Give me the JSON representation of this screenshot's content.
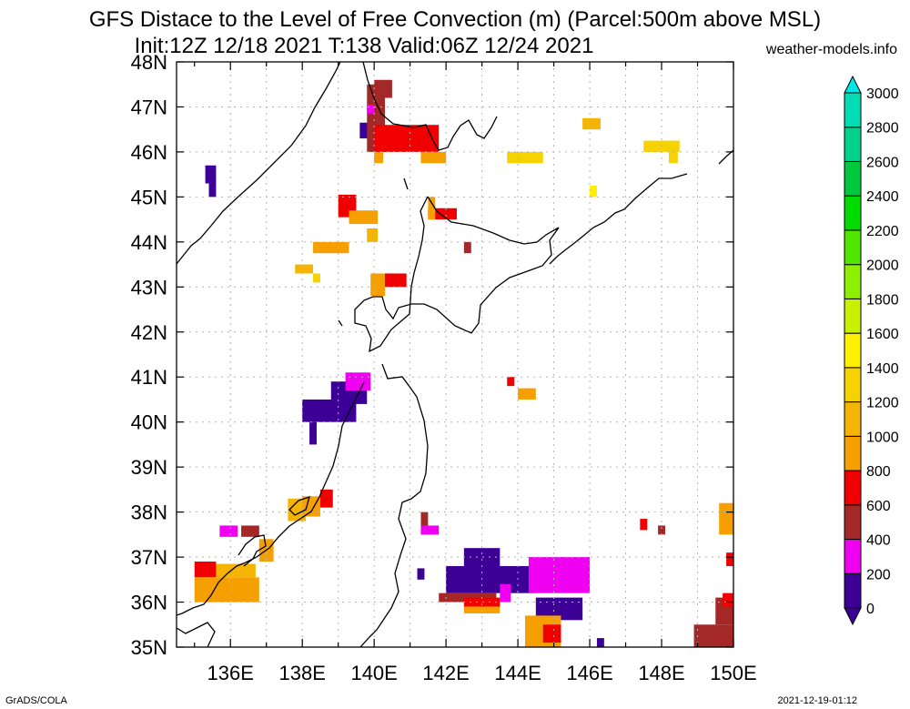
{
  "title_line1": "GFS Distace to the Level of Free Convection (m) (Parcel:500m above MSL)",
  "title_line2": "Init:12Z 12/18 2021 T:138 Valid:06Z 12/24 2021",
  "site": "weather-models.info",
  "footer_left": "GrADS/COLA",
  "footer_right": "2021-12-19-01:12",
  "lon_labels": [
    "136E",
    "138E",
    "140E",
    "142E",
    "144E",
    "146E",
    "148E",
    "150E"
  ],
  "lat_labels": [
    "35N",
    "36N",
    "37N",
    "38N",
    "39N",
    "40N",
    "41N",
    "42N",
    "43N",
    "44N",
    "45N",
    "46N",
    "47N",
    "48N"
  ],
  "colorbar": {
    "labels": [
      "0",
      "200",
      "400",
      "600",
      "800",
      "1000",
      "1200",
      "1400",
      "1600",
      "1800",
      "2000",
      "2200",
      "2400",
      "2600",
      "2800",
      "3000"
    ],
    "colors": [
      "#3c0096",
      "#f000f0",
      "#a52828",
      "#f00000",
      "#f5a000",
      "#f5b400",
      "#f5d200",
      "#fff000",
      "#c8f000",
      "#8cf000",
      "#50e600",
      "#00dc00",
      "#00c83c",
      "#00d28c",
      "#00dcb4",
      "#00e6e6"
    ]
  },
  "patches": [
    {
      "lon": 135.0,
      "lat": 36.55,
      "w": 0.6,
      "h": 0.35,
      "color": "#f00000"
    },
    {
      "lon": 135.0,
      "lat": 36.0,
      "w": 1.8,
      "h": 0.55,
      "color": "#f5a000"
    },
    {
      "lon": 135.6,
      "lat": 36.55,
      "w": 1.1,
      "h": 0.3,
      "color": "#f5b400"
    },
    {
      "lon": 135.7,
      "lat": 37.45,
      "w": 0.5,
      "h": 0.25,
      "color": "#f000f0"
    },
    {
      "lon": 136.3,
      "lat": 37.45,
      "w": 0.5,
      "h": 0.25,
      "color": "#a52828"
    },
    {
      "lon": 136.8,
      "lat": 36.9,
      "w": 0.4,
      "h": 0.5,
      "color": "#f5a000"
    },
    {
      "lon": 137.6,
      "lat": 37.8,
      "w": 0.5,
      "h": 0.5,
      "color": "#f5b400"
    },
    {
      "lon": 138.0,
      "lat": 37.9,
      "w": 0.5,
      "h": 0.45,
      "color": "#f5a000"
    },
    {
      "lon": 138.5,
      "lat": 38.1,
      "w": 0.35,
      "h": 0.4,
      "color": "#f00000"
    },
    {
      "lon": 137.8,
      "lat": 43.3,
      "w": 0.5,
      "h": 0.2,
      "color": "#f5b400"
    },
    {
      "lon": 138.3,
      "lat": 43.1,
      "w": 0.2,
      "h": 0.2,
      "color": "#f5d200"
    },
    {
      "lon": 138.3,
      "lat": 43.75,
      "w": 1.0,
      "h": 0.25,
      "color": "#f5a000"
    },
    {
      "lon": 139.0,
      "lat": 44.55,
      "w": 0.5,
      "h": 0.5,
      "color": "#f00000"
    },
    {
      "lon": 139.3,
      "lat": 44.4,
      "w": 0.8,
      "h": 0.3,
      "color": "#f5a000"
    },
    {
      "lon": 139.8,
      "lat": 44.0,
      "w": 0.3,
      "h": 0.3,
      "color": "#f5b400"
    },
    {
      "lon": 139.9,
      "lat": 42.8,
      "w": 0.4,
      "h": 0.5,
      "color": "#f5a000"
    },
    {
      "lon": 140.3,
      "lat": 43.0,
      "w": 0.6,
      "h": 0.3,
      "color": "#f00000"
    },
    {
      "lon": 139.6,
      "lat": 46.3,
      "w": 0.4,
      "h": 0.35,
      "color": "#3c0096"
    },
    {
      "lon": 139.8,
      "lat": 46.0,
      "w": 0.5,
      "h": 1.5,
      "color": "#a52828"
    },
    {
      "lon": 140.0,
      "lat": 47.2,
      "w": 0.5,
      "h": 0.4,
      "color": "#a52828"
    },
    {
      "lon": 140.0,
      "lat": 46.0,
      "w": 1.8,
      "h": 0.6,
      "color": "#f00000"
    },
    {
      "lon": 139.8,
      "lat": 46.85,
      "w": 0.2,
      "h": 0.2,
      "color": "#f000f0"
    },
    {
      "lon": 140.0,
      "lat": 45.75,
      "w": 0.25,
      "h": 0.25,
      "color": "#f5a000"
    },
    {
      "lon": 141.3,
      "lat": 45.75,
      "w": 0.7,
      "h": 0.25,
      "color": "#f5a000"
    },
    {
      "lon": 141.5,
      "lat": 44.5,
      "w": 0.8,
      "h": 0.25,
      "color": "#f00000"
    },
    {
      "lon": 141.5,
      "lat": 44.5,
      "w": 0.2,
      "h": 0.5,
      "color": "#f5a000"
    },
    {
      "lon": 142.5,
      "lat": 43.75,
      "w": 0.2,
      "h": 0.25,
      "color": "#a52828"
    },
    {
      "lon": 143.7,
      "lat": 45.75,
      "w": 1.0,
      "h": 0.25,
      "color": "#f5d200"
    },
    {
      "lon": 145.8,
      "lat": 46.5,
      "w": 0.5,
      "h": 0.25,
      "color": "#f5b400"
    },
    {
      "lon": 147.5,
      "lat": 46.0,
      "w": 1.0,
      "h": 0.25,
      "color": "#f5d200"
    },
    {
      "lon": 148.2,
      "lat": 45.75,
      "w": 0.25,
      "h": 0.25,
      "color": "#f5d200"
    },
    {
      "lon": 146.0,
      "lat": 45.0,
      "w": 0.2,
      "h": 0.25,
      "color": "#fff000"
    },
    {
      "lon": 138.0,
      "lat": 40.0,
      "w": 1.5,
      "h": 0.5,
      "color": "#3c0096"
    },
    {
      "lon": 138.8,
      "lat": 40.4,
      "w": 1.0,
      "h": 0.5,
      "color": "#3c0096"
    },
    {
      "lon": 139.2,
      "lat": 40.7,
      "w": 0.7,
      "h": 0.4,
      "color": "#f000f0"
    },
    {
      "lon": 138.2,
      "lat": 39.5,
      "w": 0.2,
      "h": 0.5,
      "color": "#3c0096"
    },
    {
      "lon": 143.7,
      "lat": 40.8,
      "w": 0.2,
      "h": 0.2,
      "color": "#f00000"
    },
    {
      "lon": 144.0,
      "lat": 40.5,
      "w": 0.5,
      "h": 0.25,
      "color": "#f5a000"
    },
    {
      "lon": 141.3,
      "lat": 37.5,
      "w": 0.2,
      "h": 0.5,
      "color": "#a52828"
    },
    {
      "lon": 141.3,
      "lat": 37.5,
      "w": 0.5,
      "h": 0.2,
      "color": "#f000f0"
    },
    {
      "lon": 141.2,
      "lat": 36.5,
      "w": 0.2,
      "h": 0.25,
      "color": "#3c0096"
    },
    {
      "lon": 142.0,
      "lat": 36.2,
      "w": 2.5,
      "h": 0.6,
      "color": "#3c0096"
    },
    {
      "lon": 142.5,
      "lat": 36.7,
      "w": 1.0,
      "h": 0.5,
      "color": "#3c0096"
    },
    {
      "lon": 141.8,
      "lat": 36.0,
      "w": 1.6,
      "h": 0.2,
      "color": "#a52828"
    },
    {
      "lon": 142.5,
      "lat": 35.9,
      "w": 1.0,
      "h": 0.2,
      "color": "#f00000"
    },
    {
      "lon": 142.5,
      "lat": 35.75,
      "w": 1.0,
      "h": 0.15,
      "color": "#f5a000"
    },
    {
      "lon": 143.5,
      "lat": 36.0,
      "w": 0.3,
      "h": 0.4,
      "color": "#f000f0"
    },
    {
      "lon": 144.3,
      "lat": 36.2,
      "w": 1.7,
      "h": 0.8,
      "color": "#f000f0"
    },
    {
      "lon": 144.5,
      "lat": 35.6,
      "w": 1.3,
      "h": 0.5,
      "color": "#3c0096"
    },
    {
      "lon": 144.2,
      "lat": 35.0,
      "w": 1.0,
      "h": 0.7,
      "color": "#f5a000"
    },
    {
      "lon": 144.7,
      "lat": 35.1,
      "w": 0.5,
      "h": 0.4,
      "color": "#f00000"
    },
    {
      "lon": 146.2,
      "lat": 35.0,
      "w": 0.2,
      "h": 0.2,
      "color": "#3c0096"
    },
    {
      "lon": 147.4,
      "lat": 37.6,
      "w": 0.2,
      "h": 0.25,
      "color": "#f00000"
    },
    {
      "lon": 147.9,
      "lat": 37.5,
      "w": 0.2,
      "h": 0.2,
      "color": "#a52828"
    },
    {
      "lon": 149.6,
      "lat": 37.5,
      "w": 0.4,
      "h": 0.7,
      "color": "#f5a000"
    },
    {
      "lon": 149.8,
      "lat": 36.8,
      "w": 0.2,
      "h": 0.3,
      "color": "#f00000"
    },
    {
      "lon": 148.9,
      "lat": 35.0,
      "w": 1.1,
      "h": 0.5,
      "color": "#a52828"
    },
    {
      "lon": 149.5,
      "lat": 35.5,
      "w": 0.5,
      "h": 0.6,
      "color": "#a52828"
    },
    {
      "lon": 149.7,
      "lat": 35.9,
      "w": 0.3,
      "h": 0.3,
      "color": "#f00000"
    },
    {
      "lon": 135.3,
      "lat": 45.3,
      "w": 0.3,
      "h": 0.4,
      "color": "#3c0096"
    },
    {
      "lon": 135.4,
      "lat": 45.0,
      "w": 0.2,
      "h": 0.3,
      "color": "#3c0096"
    }
  ]
}
